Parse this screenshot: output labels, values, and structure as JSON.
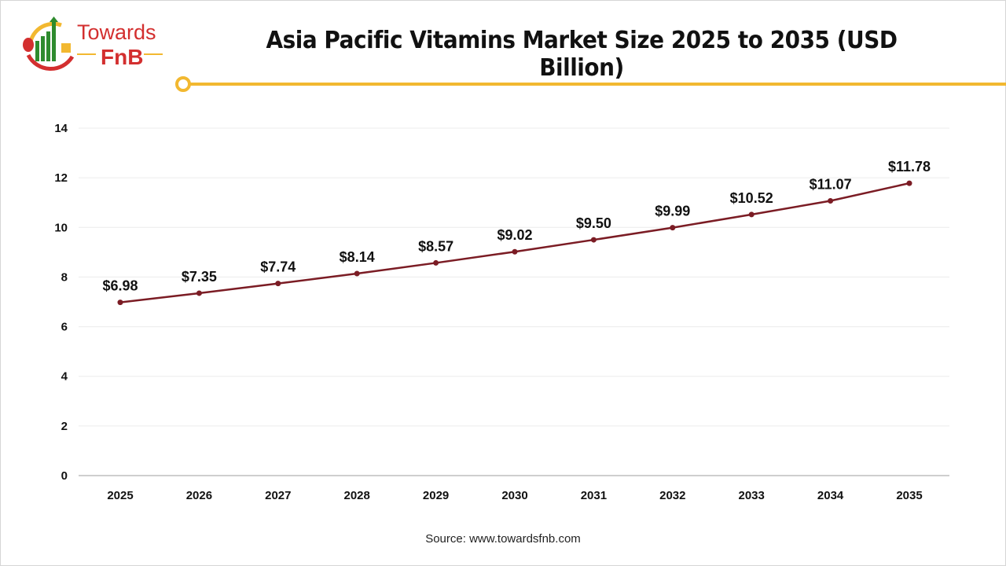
{
  "logo": {
    "text_top": "Towards",
    "text_bottom": "FnB",
    "colors": {
      "red": "#d32f2f",
      "green": "#2e8b2e",
      "yellow": "#f2b830"
    }
  },
  "accent_line_color": "#f2b830",
  "source": "Source: www.towardsfnb.com",
  "chart_data": {
    "type": "line",
    "title": "Asia Pacific Vitamins Market Size 2025 to 2035 (USD Billion)",
    "categories": [
      "2025",
      "2026",
      "2027",
      "2028",
      "2029",
      "2030",
      "2031",
      "2032",
      "2033",
      "2034",
      "2035"
    ],
    "series": [
      {
        "name": "Market Size",
        "color": "#7b1c24",
        "values": [
          6.98,
          7.35,
          7.74,
          8.14,
          8.57,
          9.02,
          9.5,
          9.99,
          10.52,
          11.07,
          11.78
        ],
        "labels": [
          "$6.98",
          "$7.35",
          "$7.74",
          "$8.14",
          "$8.57",
          "$9.02",
          "$9.50",
          "$9.99",
          "$10.52",
          "$11.07",
          "$11.78"
        ]
      }
    ],
    "yticks": [
      "0",
      "2",
      "4",
      "6",
      "8",
      "10",
      "12",
      "14"
    ],
    "ylim": [
      0,
      14
    ],
    "xlabel": "",
    "ylabel": "",
    "grid": true,
    "legend": "none"
  }
}
